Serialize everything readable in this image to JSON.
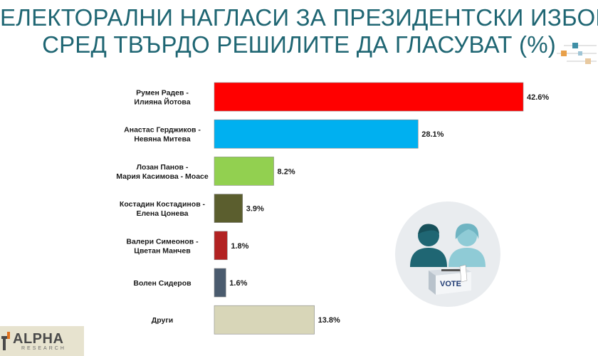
{
  "title": {
    "line1": "ЕЛЕКТОРАЛНИ НАГЛАСИ ЗА ПРЕЗИДЕНТСКИ ИЗБОРИ",
    "line2": "СРЕД ТВЪРДО РЕШИЛИТЕ ДА ГЛАСУВАТ (%)"
  },
  "chart_data": {
    "type": "bar",
    "orientation": "horizontal",
    "categories": [
      [
        "Румен Радев -",
        "Илияна Йотова"
      ],
      [
        "Анастас Герджиков -",
        "Невяна Митева"
      ],
      [
        "Лозан Панов -",
        "Мария Касимова - Моасе"
      ],
      [
        "Костадин Костадинов -",
        "Елена Цонева"
      ],
      [
        "Валери Симеонов -",
        "Цветан Манчев"
      ],
      [
        "Волен Сидеров"
      ],
      [
        "Други"
      ]
    ],
    "values": [
      42.6,
      28.1,
      8.2,
      3.9,
      1.8,
      1.6,
      13.8
    ],
    "value_labels": [
      "42.6%",
      "28.1%",
      "8.2%",
      "3.9%",
      "1.8%",
      "1.6%",
      "13.8%"
    ],
    "colors": [
      "#ff0000",
      "#00b0f0",
      "#92d050",
      "#5b5e2e",
      "#b22222",
      "#4a5b6e",
      "#d8d6b8"
    ],
    "xlim": [
      0,
      42.6
    ],
    "grid": false,
    "legend": "none"
  },
  "logo": {
    "name": "ALPHA",
    "sub": "RESEARCH",
    "color": "#4a4a4a"
  },
  "illustration": {
    "icon": "voters-ballot-box-icon",
    "ballot_text": "VOTE"
  }
}
